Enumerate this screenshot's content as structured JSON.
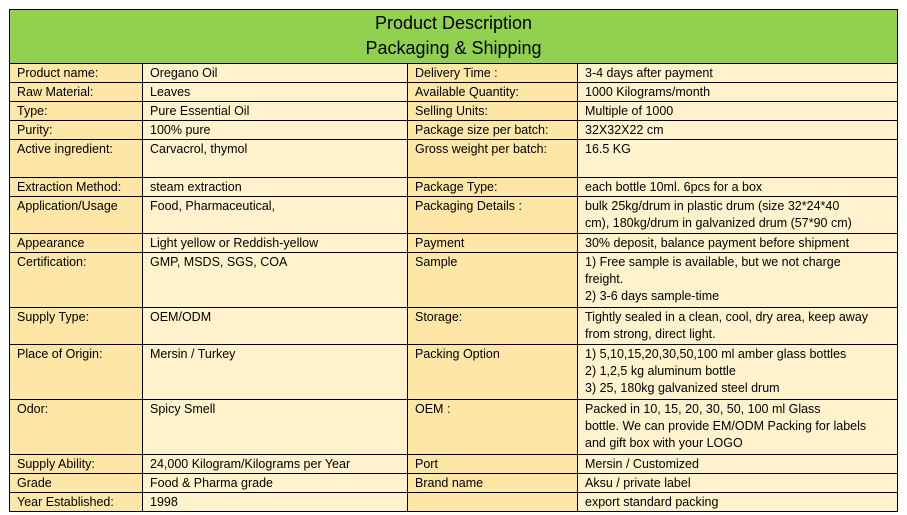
{
  "header": {
    "title_line1": "Product Description",
    "title_line2": "Packaging & Shipping"
  },
  "rows": [
    {
      "k1": "Product name:",
      "v1": [
        "Oregano Oil"
      ],
      "k2": "Delivery Time :",
      "v2": [
        "3-4 days after payment"
      ]
    },
    {
      "k1": "Raw Material:",
      "v1": [
        "Leaves"
      ],
      "k2": "Available Quantity:",
      "v2": [
        "1000 Kilograms/month"
      ]
    },
    {
      "k1": "Type:",
      "v1": [
        "Pure Essential Oil"
      ],
      "k2": "Selling Units:",
      "v2": [
        "Multiple of 1000"
      ]
    },
    {
      "k1": "Purity:",
      "v1": [
        "100% pure"
      ],
      "k2": "Package size per batch:",
      "v2": [
        "32X32X22 cm"
      ]
    },
    {
      "k1": "Active ingredient:",
      "v1": [
        "Carvacrol, thymol"
      ],
      "k2": "Gross weight per batch:",
      "v2": [
        "16.5 KG"
      ]
    },
    {
      "k1": "Extraction Method:",
      "v1": [
        "steam extraction"
      ],
      "k2": "Package Type:",
      "v2": [
        "each bottle 10ml. 6pcs for a box"
      ]
    },
    {
      "k1": "Application/Usage",
      "v1": [
        "Food, Pharmaceutical,"
      ],
      "k2": "Packaging Details :",
      "v2": [
        "bulk 25kg/drum in plastic drum (size 32*24*40",
        "cm), 180kg/drum in galvanized drum (57*90 cm)"
      ]
    },
    {
      "k1": "Appearance",
      "v1": [
        "Light yellow or Reddish-yellow"
      ],
      "k2": "Payment",
      "v2": [
        "30% deposit, balance payment before shipment"
      ]
    },
    {
      "k1": "Certification:",
      "v1": [
        "GMP, MSDS, SGS, COA"
      ],
      "k2": "Sample",
      "v2": [
        "1) Free sample is available, but we not charge",
        "freight.",
        "2) 3-6 days sample-time"
      ]
    },
    {
      "k1": "Supply Type:",
      "v1": [
        "OEM/ODM"
      ],
      "k2": "Storage:",
      "v2": [
        "Tightly sealed in a clean, cool, dry area, keep away",
        "from strong, direct light."
      ]
    },
    {
      "k1": "Place of Origin:",
      "v1": [
        "Mersin / Turkey"
      ],
      "k2": "Packing Option",
      "v2": [
        "1) 5,10,15,20,30,50,100 ml amber glass bottles",
        "2) 1,2,5 kg aluminum bottle",
        "3) 25, 180kg galvanized steel drum"
      ]
    },
    {
      "k1": "Odor:",
      "v1": [
        "Spicy Smell"
      ],
      "k2": "OEM :",
      "v2": [
        "Packed in 10, 15, 20, 30, 50, 100 ml Glass",
        "bottle. We can provide EM/ODM Packing for labels",
        "and gift box with your LOGO"
      ]
    },
    {
      "k1": "Supply Ability:",
      "v1": [
        "24,000 Kilogram/Kilograms per Year"
      ],
      "k2": "Port",
      "v2": [
        "Mersin / Customized"
      ]
    },
    {
      "k1": "Grade",
      "v1": [
        "Food & Pharma grade"
      ],
      "k2": "Brand name",
      "v2": [
        "Aksu / private label"
      ]
    },
    {
      "k1": "Year Established:",
      "v1": [
        "1998"
      ],
      "k2": "",
      "v2": [
        "export standard packing"
      ]
    }
  ]
}
